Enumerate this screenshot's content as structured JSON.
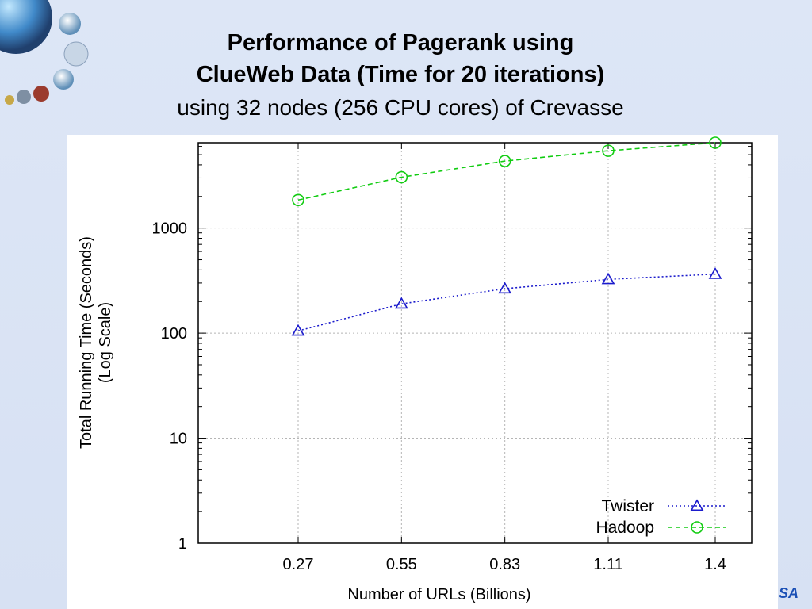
{
  "slide": {
    "title_line1": "Performance of Pagerank using",
    "title_line2": "ClueWeb Data (Time for 20 iterations)",
    "subtitle": "using 32 nodes (256 CPU cores) of Crevasse",
    "corner_logo": "SA"
  },
  "chart_data": {
    "type": "line",
    "title": "",
    "xlabel": "Number of URLs (Billions)",
    "ylabel_line1": "Total Running Time (Seconds)",
    "ylabel_line2": "(Log Scale)",
    "y_scale": "log",
    "ylim": [
      1,
      6500
    ],
    "x": [
      "0.27",
      "0.55",
      "0.83",
      "1.11",
      "1.4"
    ],
    "y_ticks": [
      "1",
      "10",
      "100",
      "1000"
    ],
    "grid": true,
    "legend_position": "bottom-right",
    "series": [
      {
        "name": "Twister",
        "color": "#1b1bcc",
        "marker": "triangle",
        "line": "dotted",
        "values": [
          105,
          190,
          265,
          325,
          365
        ]
      },
      {
        "name": "Hadoop",
        "color": "#12cc12",
        "marker": "circle",
        "line": "dashed",
        "values": [
          1850,
          3050,
          4350,
          5450,
          6500
        ]
      }
    ]
  }
}
